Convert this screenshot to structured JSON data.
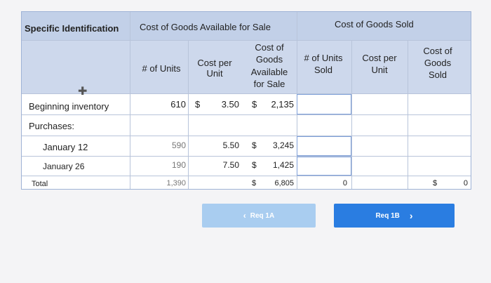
{
  "headers": {
    "specific_identification": "Specific Identification",
    "cost_goods_available": "Cost of Goods Available for Sale",
    "cost_goods_sold": "Cost of Goods Sold"
  },
  "subheaders": {
    "units": "# of Units",
    "cost_per_unit_1": "Cost per",
    "cost_per_unit_2": "Unit",
    "cgas_1": "Cost of",
    "cgas_2": "Goods",
    "cgas_3": "Available",
    "cgas_4": "for Sale",
    "units_sold_1": "# of Units",
    "units_sold_2": "Sold",
    "cpu2_1": "Cost per",
    "cpu2_2": "Unit",
    "cogs_1": "Cost of",
    "cogs_2": "Goods",
    "cogs_3": "Sold"
  },
  "rows": {
    "beginning": {
      "label": "Beginning inventory",
      "units": "610",
      "dollar1": "$",
      "cost": "3.50",
      "dollar2": "$",
      "total": "2,135"
    },
    "purchases": {
      "label": "Purchases:"
    },
    "jan12": {
      "label": "January 12",
      "units": "590",
      "cost": "5.50",
      "dollar": "$",
      "total": "3,245"
    },
    "jan26": {
      "label": "January 26",
      "units": "190",
      "cost": "7.50",
      "dollar": "$",
      "total": "1,425"
    },
    "total": {
      "label": "Total",
      "units": "1,390",
      "dollar": "$",
      "sum": "6,805",
      "units_sold": "0",
      "cogs_dollar": "$",
      "cogs": "0"
    }
  },
  "buttons": {
    "prev": "Req 1A",
    "next": "Req 1B"
  },
  "colors": {
    "prev_btn": "#a9cdf0",
    "next_btn": "#2a7de1"
  }
}
